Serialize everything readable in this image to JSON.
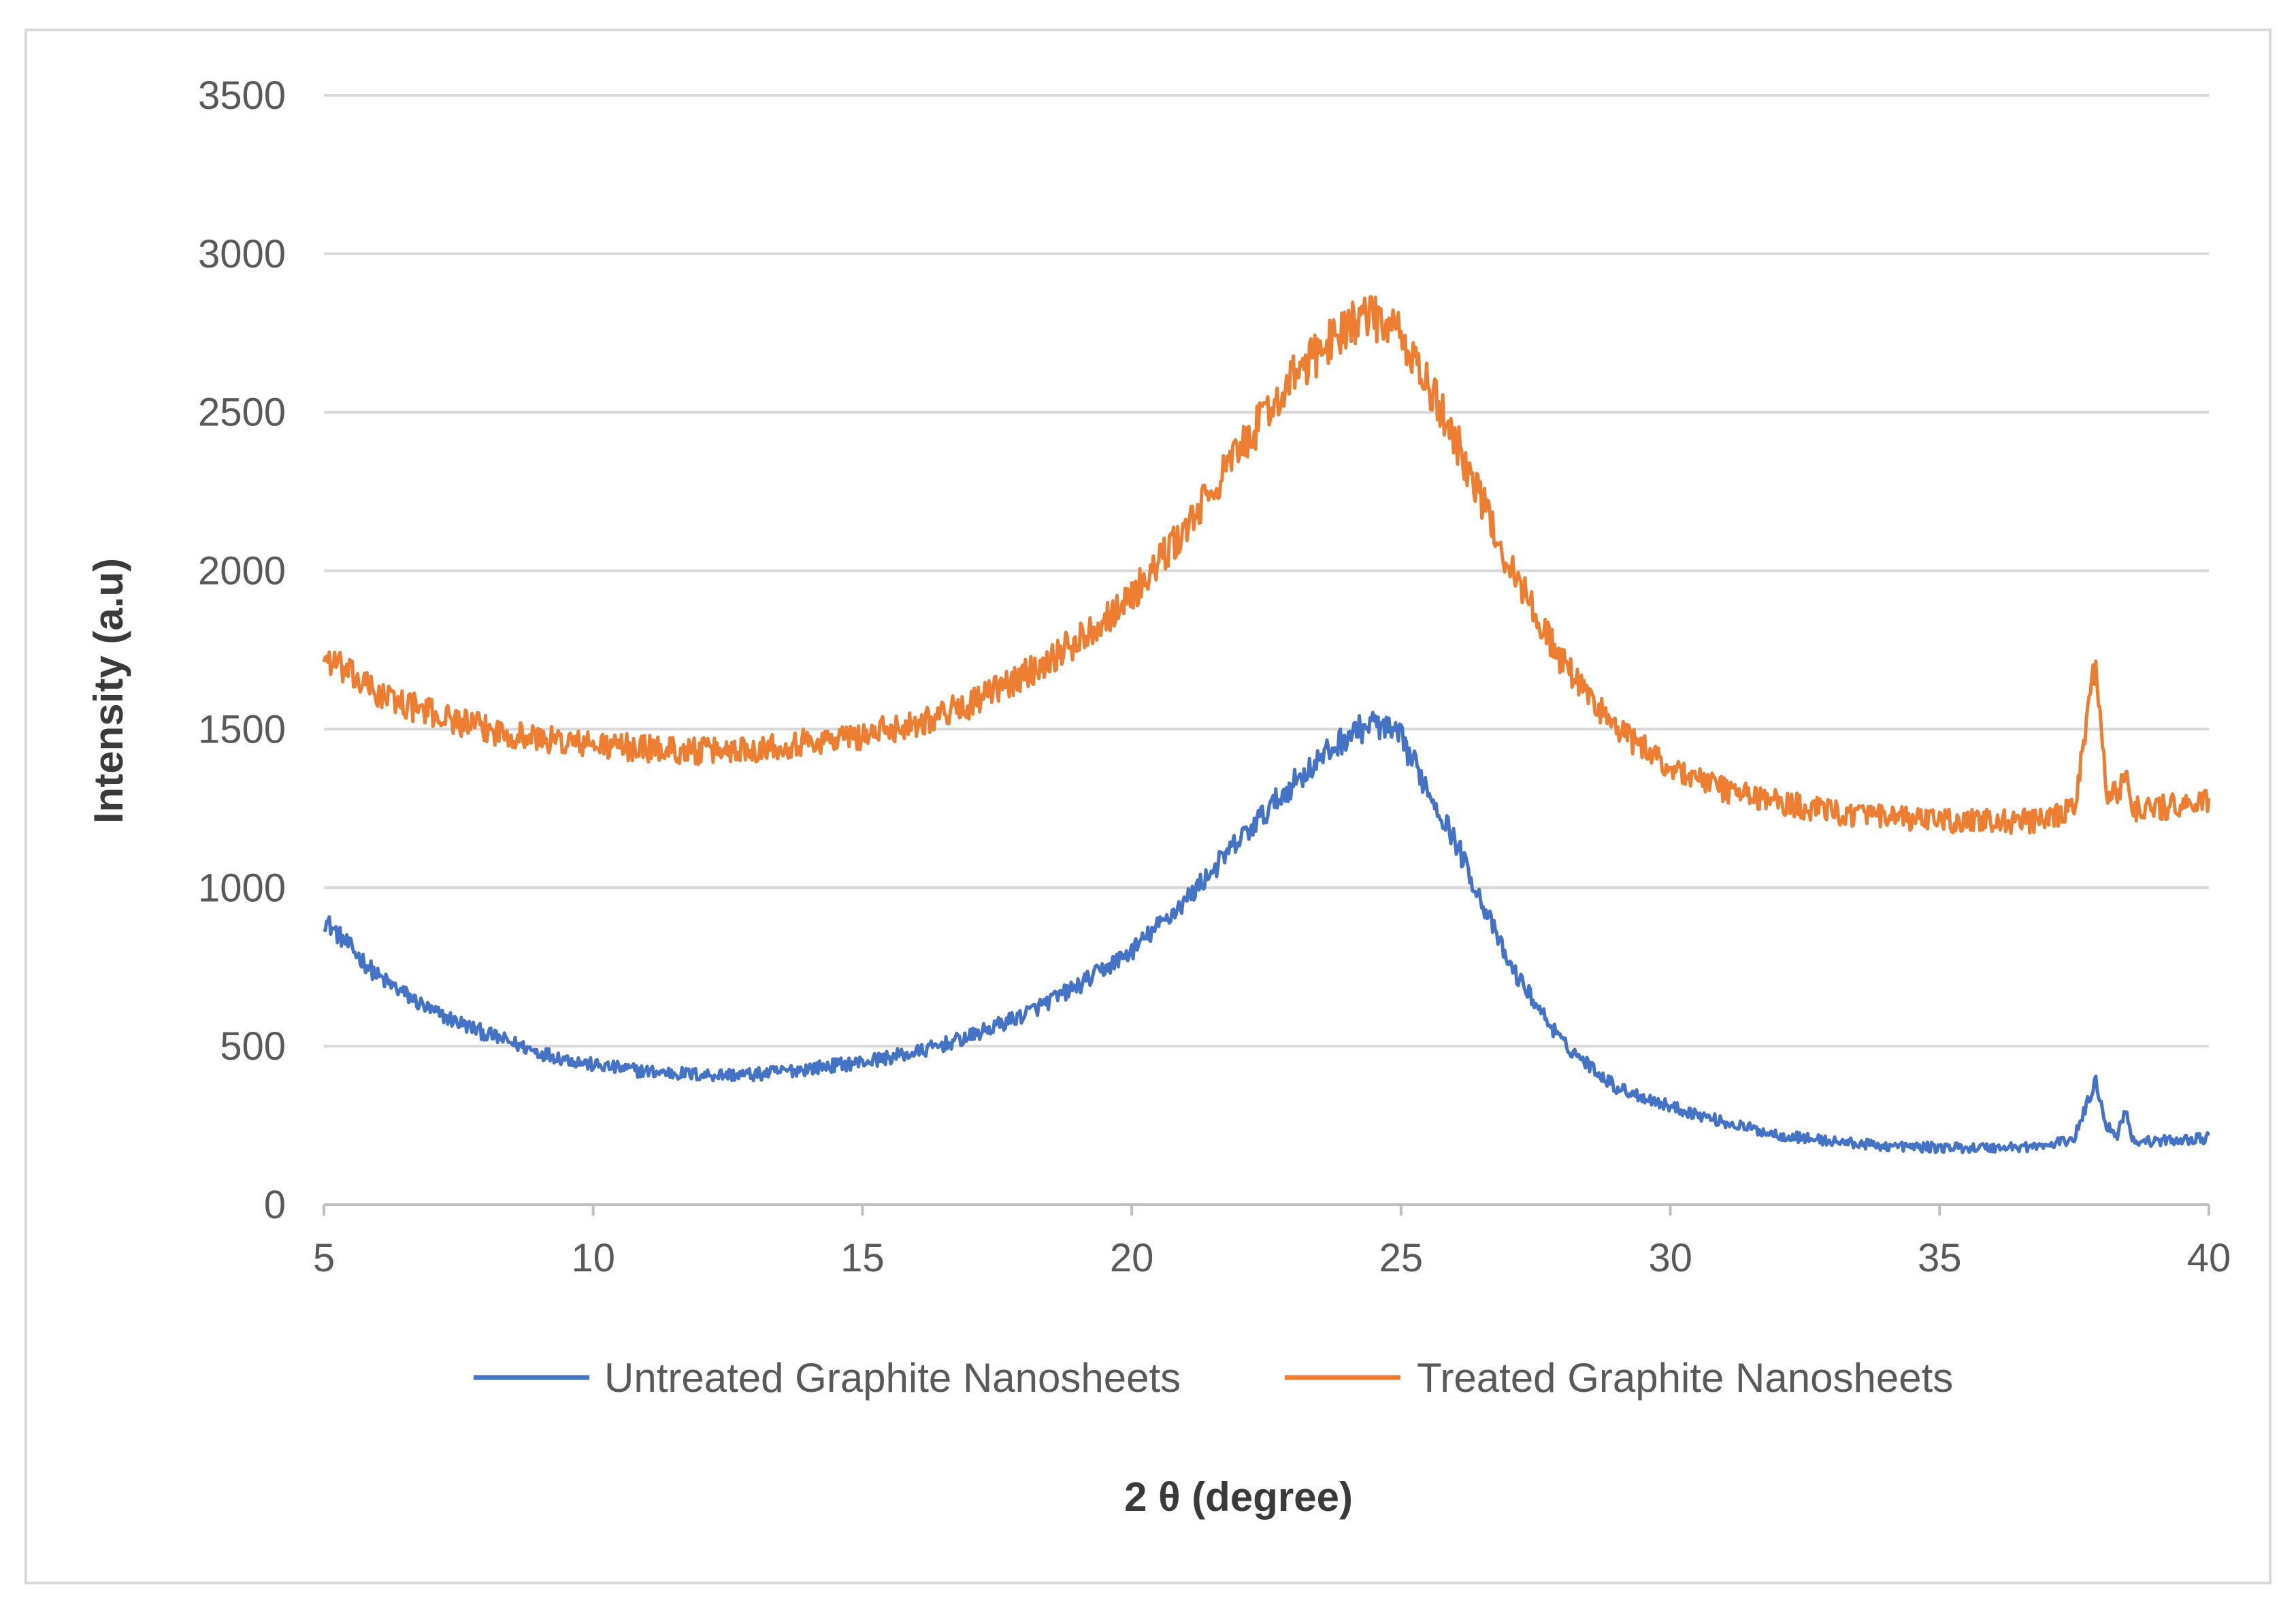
{
  "chart_data": {
    "type": "line",
    "title": "",
    "xlabel": "2 θ (degree)",
    "ylabel": "Intensity (a.u)",
    "xlim": [
      5,
      40
    ],
    "ylim": [
      0,
      3500
    ],
    "xticks": [
      5,
      10,
      15,
      20,
      25,
      30,
      35,
      40
    ],
    "yticks": [
      0,
      500,
      1000,
      1500,
      2000,
      2500,
      3000,
      3500
    ],
    "grid": "horizontal",
    "legend_position": "bottom",
    "series": [
      {
        "name": "Untreated Graphite Nanosheets",
        "color": "#4472c4",
        "x": [
          5,
          6,
          7,
          8,
          9,
          10,
          11,
          12,
          13,
          14,
          15,
          16,
          17,
          18,
          19,
          20,
          21,
          22,
          23,
          24,
          24.5,
          25,
          26,
          27,
          28,
          29,
          30,
          31,
          32,
          33,
          34,
          35,
          36,
          37,
          37.5,
          37.9,
          38.1,
          38.3,
          38.45,
          38.6,
          39,
          40
        ],
        "y": [
          900,
          720,
          610,
          540,
          480,
          440,
          420,
          410,
          410,
          430,
          450,
          480,
          530,
          600,
          690,
          800,
          960,
          1150,
          1330,
          1480,
          1520,
          1470,
          1150,
          760,
          510,
          370,
          310,
          260,
          220,
          200,
          185,
          180,
          180,
          185,
          210,
          390,
          250,
          220,
          300,
          200,
          200,
          210
        ]
      },
      {
        "name": "Treated Graphite Nanosheets",
        "color": "#ed7d31",
        "x": [
          5,
          6,
          7,
          8,
          9,
          10,
          11,
          12,
          13,
          14,
          15,
          16,
          17,
          18,
          19,
          20,
          21,
          22,
          23,
          24,
          24.5,
          25,
          26,
          27,
          28,
          29,
          30,
          31,
          32,
          33,
          34,
          35,
          36,
          37,
          37.5,
          37.9,
          38.1,
          38.3,
          38.45,
          38.6,
          39,
          40
        ],
        "y": [
          1730,
          1610,
          1550,
          1500,
          1470,
          1450,
          1440,
          1430,
          1440,
          1460,
          1480,
          1520,
          1580,
          1670,
          1780,
          1920,
          2130,
          2380,
          2610,
          2780,
          2800,
          2740,
          2420,
          2020,
          1710,
          1500,
          1380,
          1310,
          1270,
          1240,
          1220,
          1210,
          1210,
          1210,
          1250,
          1720,
          1300,
          1290,
          1360,
          1250,
          1250,
          1270
        ]
      }
    ]
  }
}
